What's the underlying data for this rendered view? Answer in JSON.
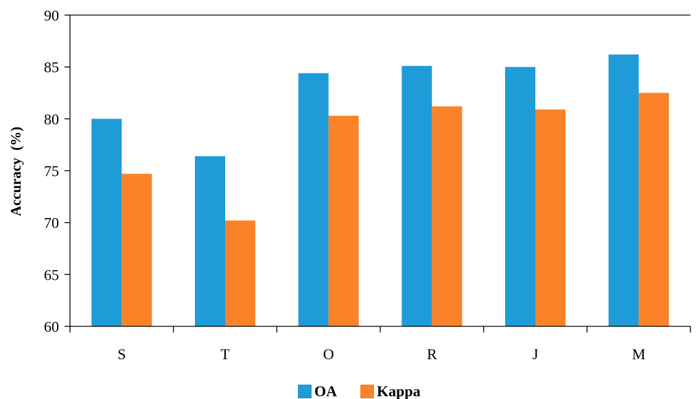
{
  "chart_data": {
    "type": "bar",
    "categories": [
      "S",
      "T",
      "O",
      "R",
      "J",
      "M"
    ],
    "series": [
      {
        "name": "OA",
        "color": "#1f9bd7",
        "values": [
          80.0,
          76.4,
          84.4,
          85.1,
          85.0,
          86.2
        ]
      },
      {
        "name": "Kappa",
        "color": "#fb8229",
        "values": [
          74.7,
          70.2,
          80.3,
          81.2,
          80.9,
          82.5
        ]
      }
    ],
    "title": "",
    "xlabel": "",
    "ylabel": "Accuracy  (%)",
    "ylim": [
      60,
      90
    ],
    "yticks": [
      "60",
      "65",
      "70",
      "75",
      "80",
      "85",
      "90"
    ],
    "grid": false,
    "legend_position": "bottom-center"
  }
}
